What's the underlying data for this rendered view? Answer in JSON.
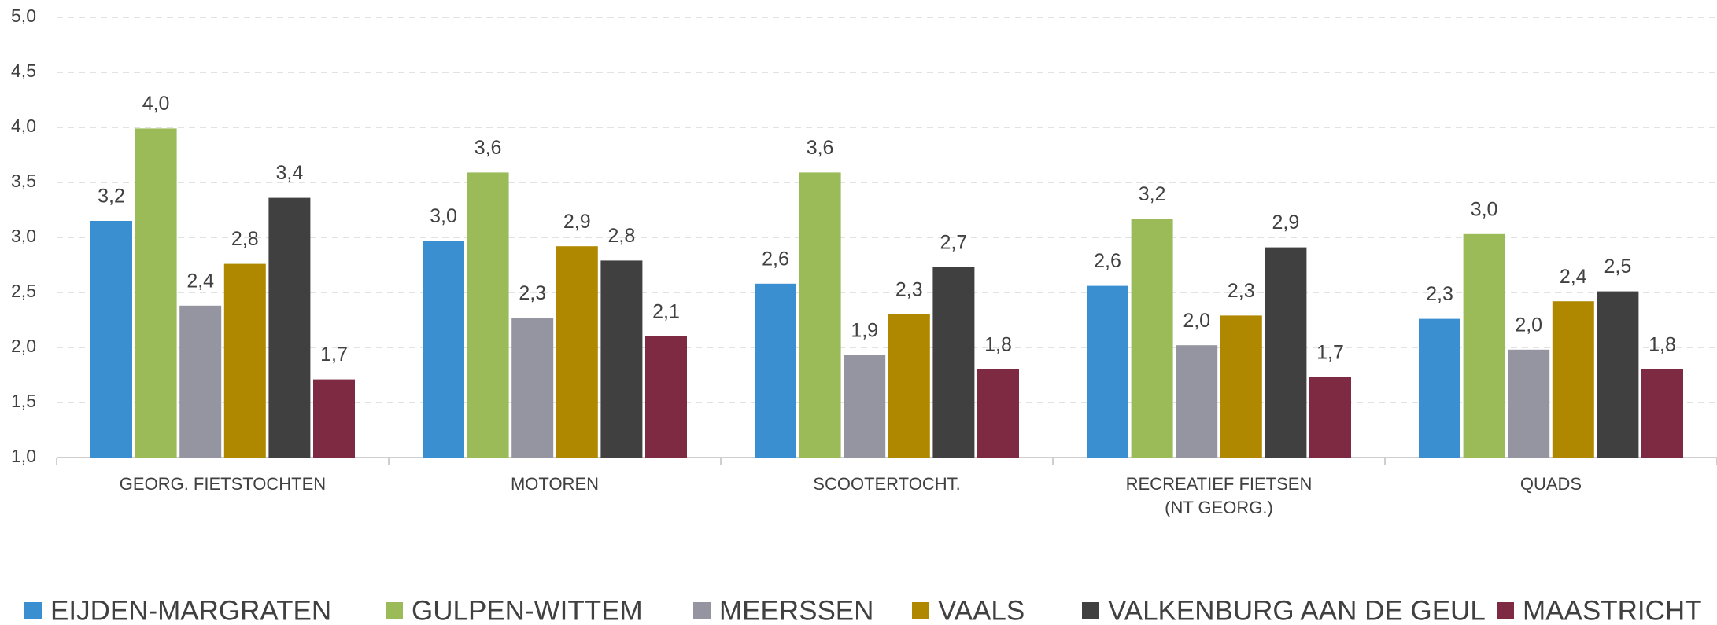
{
  "chart_data": {
    "type": "bar",
    "categories": [
      "GEORG. FIETSTOCHTEN",
      "MOTOREN",
      "SCOOTERTOCHT.",
      "RECREATIEF FIETSEN\n(NT GEORG.)",
      "QUADS"
    ],
    "series": [
      {
        "name": "EIJDEN-MARGRATEN",
        "color": "#3a8fd0",
        "values": [
          3.15,
          2.97,
          2.58,
          2.56,
          2.26
        ],
        "value_labels": [
          "3,2",
          "3,0",
          "2,6",
          "2,6",
          "2,3"
        ]
      },
      {
        "name": "GULPEN-WITTEM",
        "color": "#9bbb59",
        "values": [
          3.99,
          3.59,
          3.59,
          3.17,
          3.03
        ],
        "value_labels": [
          "4,0",
          "3,6",
          "3,6",
          "3,2",
          "3,0"
        ]
      },
      {
        "name": "MEERSSEN",
        "color": "#9495a0",
        "values": [
          2.38,
          2.27,
          1.93,
          2.02,
          1.98
        ],
        "value_labels": [
          "2,4",
          "2,3",
          "1,9",
          "2,0",
          "2,0"
        ]
      },
      {
        "name": "VAALS",
        "color": "#b08800",
        "values": [
          2.76,
          2.92,
          2.3,
          2.29,
          2.42
        ],
        "value_labels": [
          "2,8",
          "2,9",
          "2,3",
          "2,3",
          "2,4"
        ]
      },
      {
        "name": "VALKENBURG AAN DE GEUL",
        "color": "#404040",
        "values": [
          3.36,
          2.79,
          2.73,
          2.91,
          2.51
        ],
        "value_labels": [
          "3,4",
          "2,8",
          "2,7",
          "2,9",
          "2,5"
        ]
      },
      {
        "name": "MAASTRICHT",
        "color": "#7e2a42",
        "values": [
          1.71,
          2.1,
          1.8,
          1.73,
          1.8
        ],
        "value_labels": [
          "1,7",
          "2,1",
          "1,8",
          "1,7",
          "1,8"
        ]
      }
    ],
    "ylim": [
      1,
      5
    ],
    "yticks": [
      {
        "value": 1,
        "label": "1,0"
      },
      {
        "value": 1.5,
        "label": "1,5"
      },
      {
        "value": 2,
        "label": "2,0"
      },
      {
        "value": 2.5,
        "label": "2,5"
      },
      {
        "value": 3,
        "label": "3,0"
      },
      {
        "value": 3.5,
        "label": "3,5"
      },
      {
        "value": 4,
        "label": "4,0"
      },
      {
        "value": 4.5,
        "label": "4,5"
      },
      {
        "value": 5,
        "label": "5,0"
      }
    ],
    "grid": true,
    "legend": "bottom"
  }
}
